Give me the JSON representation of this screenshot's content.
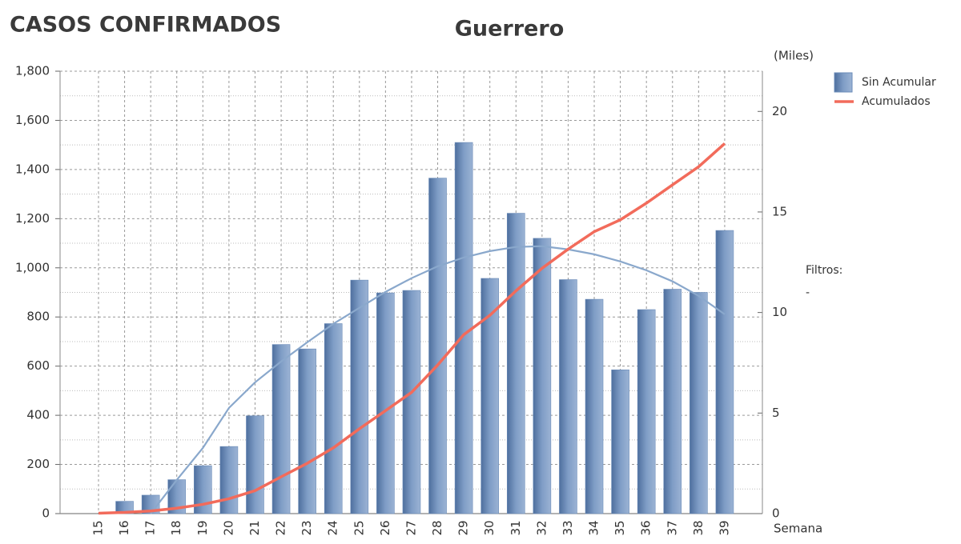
{
  "chart_data": {
    "type": "bar_line",
    "title": "CASOS CONFIRMADOS",
    "subtitle": "Guerrero",
    "y2_label": "(Miles)",
    "x_label": "Semana",
    "filter_label": "Filtros:",
    "filter_value": "-",
    "categories": [
      "15",
      "16",
      "17",
      "18",
      "19",
      "20",
      "21",
      "22",
      "23",
      "24",
      "25",
      "26",
      "27",
      "28",
      "29",
      "30",
      "31",
      "32",
      "33",
      "34",
      "35",
      "36",
      "37",
      "38",
      "39"
    ],
    "series": [
      {
        "name": "Sin Acumular",
        "type": "bar",
        "color": "#6a8bb8",
        "values": [
          0,
          50,
          75,
          138,
          195,
          273,
          398,
          688,
          670,
          773,
          950,
          898,
          908,
          1365,
          1510,
          957,
          1222,
          1120,
          952,
          872,
          585,
          830,
          913,
          900,
          1152
        ]
      },
      {
        "name": "Acumulados",
        "type": "line",
        "axis": "y2",
        "color": "#f26b5b",
        "values": [
          0.02,
          0.06,
          0.13,
          0.27,
          0.46,
          0.74,
          1.14,
          1.83,
          2.5,
          3.27,
          4.22,
          5.12,
          6.03,
          7.39,
          8.9,
          9.86,
          11.08,
          12.2,
          13.15,
          14.02,
          14.61,
          15.44,
          16.35,
          17.25,
          18.4
        ]
      }
    ],
    "trend": {
      "color": "#8aa8cc",
      "values": [
        null,
        null,
        0,
        137,
        267,
        430,
        534,
        619,
        697,
        772,
        837,
        902,
        958,
        1006,
        1042,
        1068,
        1085,
        1088,
        1075,
        1055,
        1026,
        990,
        945,
        886,
        811
      ]
    },
    "ylim": [
      0,
      1800
    ],
    "yticks": [
      0,
      200,
      400,
      600,
      800,
      {
        "value": 1000,
        "label": "1,000"
      },
      {
        "value": 1200,
        "label": "1,200"
      },
      {
        "value": 1400,
        "label": "1,400"
      },
      {
        "value": 1600,
        "label": "1,600"
      },
      {
        "value": 1800,
        "label": "1,800"
      }
    ],
    "y2lim": [
      0,
      22
    ],
    "y2ticks": [
      0,
      5,
      10,
      15,
      20
    ],
    "grid": true,
    "legend": "top-right"
  }
}
